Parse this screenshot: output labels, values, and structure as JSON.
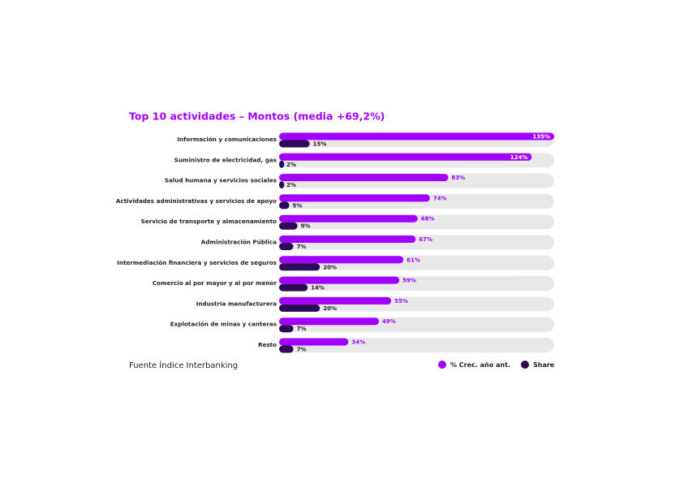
{
  "chart_data": {
    "type": "bar",
    "orientation": "horizontal",
    "title": "Top 10 actividades – Montos (media +69,2%)",
    "source": "Fuente Índice Interbanking",
    "categories": [
      "Información y comunicaciones",
      "Suministro de electricidad, gas",
      "Salud humana y servicios sociales",
      "Actividades administrativas y servicios de apoyo",
      "Servicio de transporte y almacenamiento",
      "Administración Pública",
      "Intermediación financiera y servicios de seguros",
      "Comercio al por mayor y al por menor",
      "Industria manufacturera",
      "Explotación de minas y canteras",
      "Resto"
    ],
    "series": [
      {
        "name": "% Crec. año ant.",
        "color": "#a100ff",
        "values": [
          135,
          124,
          83,
          74,
          68,
          67,
          61,
          59,
          55,
          49,
          34
        ],
        "value_labels": [
          "135%",
          "124%",
          "83%",
          "74%",
          "68%",
          "67%",
          "61%",
          "59%",
          "55%",
          "49%",
          "34%"
        ]
      },
      {
        "name": "Share",
        "color": "#2d0a57",
        "values": [
          15,
          2,
          2,
          5,
          9,
          7,
          20,
          14,
          20,
          7,
          7
        ],
        "value_labels": [
          "15%",
          "2%",
          "2%",
          "5%",
          "9%",
          "7%",
          "20%",
          "14%",
          "20%",
          "7%",
          "7%"
        ]
      }
    ]
  }
}
